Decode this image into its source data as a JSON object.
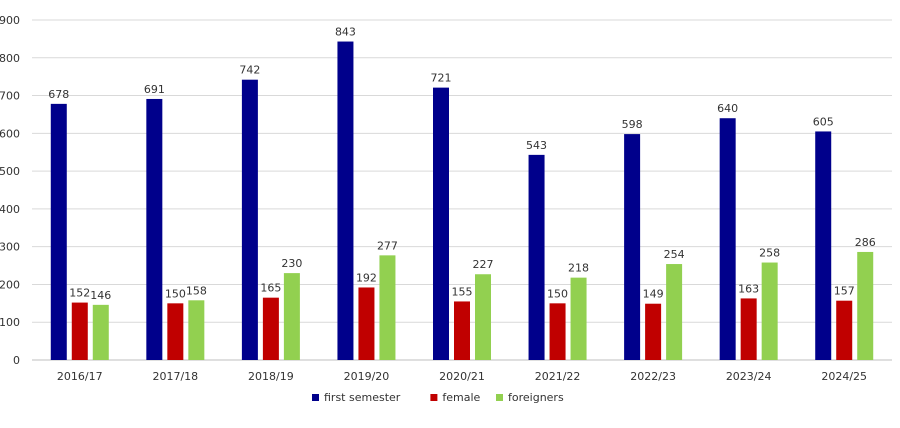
{
  "chart_data": {
    "type": "bar",
    "title": "",
    "xlabel": "",
    "ylabel": "",
    "ylim": [
      0,
      900
    ],
    "yticks": [
      0,
      100,
      200,
      300,
      400,
      500,
      600,
      700,
      800,
      900
    ],
    "grid": "horizontal",
    "legend_position": "bottom",
    "categories": [
      "2016/17",
      "2017/18",
      "2018/19",
      "2019/20",
      "2020/21",
      "2021/22",
      "2022/23",
      "2023/24",
      "2024/25"
    ],
    "series": [
      {
        "name": "first semester",
        "color": "#00008B",
        "values": [
          678,
          691,
          742,
          843,
          721,
          543,
          598,
          640,
          605
        ]
      },
      {
        "name": "female",
        "color": "#C00000",
        "values": [
          152,
          150,
          165,
          192,
          155,
          150,
          149,
          163,
          157
        ]
      },
      {
        "name": "foreigners",
        "color": "#92D050",
        "values": [
          146,
          158,
          230,
          277,
          227,
          218,
          254,
          258,
          286
        ]
      }
    ]
  }
}
